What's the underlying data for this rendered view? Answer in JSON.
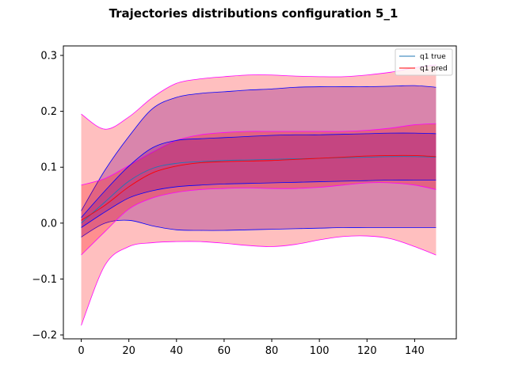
{
  "chart_data": {
    "type": "area",
    "title": "Trajectories distributions configuration  5_1",
    "xlabel": "",
    "ylabel": "",
    "xlim": [
      -7.5,
      157.5
    ],
    "ylim": [
      -0.207,
      0.317
    ],
    "xticks": [
      0,
      20,
      40,
      60,
      80,
      100,
      120,
      140
    ],
    "yticks": [
      -0.2,
      -0.1,
      0.0,
      0.1,
      0.2,
      0.3
    ],
    "ytick_labels": [
      "−0.2",
      "−0.1",
      "0.0",
      "0.1",
      "0.2",
      "0.3"
    ],
    "grid": false,
    "legend_position": "top-right",
    "x": [
      0,
      10,
      20,
      30,
      40,
      50,
      60,
      70,
      80,
      90,
      100,
      110,
      120,
      130,
      140,
      149
    ],
    "bands": [
      {
        "group": "pred",
        "level": "outer",
        "color": "#ff0000",
        "alpha": 0.25,
        "edge": "#ff00ff",
        "upper": [
          0.195,
          0.168,
          0.19,
          0.225,
          0.25,
          0.258,
          0.262,
          0.265,
          0.265,
          0.263,
          0.262,
          0.262,
          0.265,
          0.27,
          0.278,
          0.283
        ],
        "lower": [
          -0.183,
          -0.075,
          -0.042,
          -0.035,
          -0.033,
          -0.033,
          -0.036,
          -0.04,
          -0.042,
          -0.038,
          -0.03,
          -0.024,
          -0.023,
          -0.028,
          -0.042,
          -0.057
        ]
      },
      {
        "group": "true",
        "level": "outer",
        "color": "#800080",
        "alpha": 0.3,
        "edge": "#0000ff",
        "upper": [
          0.022,
          0.095,
          0.155,
          0.205,
          0.225,
          0.232,
          0.235,
          0.238,
          0.24,
          0.243,
          0.244,
          0.244,
          0.244,
          0.245,
          0.246,
          0.243
        ],
        "lower": [
          -0.025,
          0.0,
          0.005,
          -0.005,
          -0.012,
          -0.013,
          -0.013,
          -0.012,
          -0.011,
          -0.01,
          -0.009,
          -0.008,
          -0.008,
          -0.008,
          -0.008,
          -0.008
        ]
      },
      {
        "group": "pred",
        "level": "inner",
        "color": "#ff0000",
        "alpha": 0.25,
        "edge": "#ff00ff",
        "upper": [
          0.068,
          0.08,
          0.103,
          0.127,
          0.148,
          0.158,
          0.162,
          0.164,
          0.164,
          0.164,
          0.164,
          0.164,
          0.166,
          0.17,
          0.176,
          0.178
        ],
        "lower": [
          -0.057,
          -0.015,
          0.025,
          0.045,
          0.055,
          0.06,
          0.062,
          0.063,
          0.062,
          0.062,
          0.064,
          0.068,
          0.072,
          0.072,
          0.068,
          0.06
        ]
      },
      {
        "group": "true",
        "level": "inner",
        "color": "#800080",
        "alpha": 0.3,
        "edge": "#0000ff",
        "upper": [
          0.01,
          0.058,
          0.102,
          0.135,
          0.148,
          0.151,
          0.153,
          0.155,
          0.157,
          0.158,
          0.158,
          0.159,
          0.16,
          0.161,
          0.161,
          0.16
        ],
        "lower": [
          -0.008,
          0.02,
          0.045,
          0.058,
          0.065,
          0.068,
          0.07,
          0.071,
          0.072,
          0.073,
          0.074,
          0.075,
          0.076,
          0.077,
          0.077,
          0.077
        ]
      }
    ],
    "series": [
      {
        "name": "q1 true",
        "color": "#1f77b4",
        "values": [
          0.0,
          0.038,
          0.075,
          0.098,
          0.107,
          0.11,
          0.112,
          0.113,
          0.114,
          0.115,
          0.116,
          0.117,
          0.118,
          0.119,
          0.119,
          0.118
        ]
      },
      {
        "name": "q1 pred",
        "color": "#ff0000",
        "values": [
          0.005,
          0.032,
          0.065,
          0.09,
          0.102,
          0.108,
          0.11,
          0.111,
          0.112,
          0.114,
          0.116,
          0.118,
          0.12,
          0.121,
          0.121,
          0.119
        ]
      }
    ]
  }
}
